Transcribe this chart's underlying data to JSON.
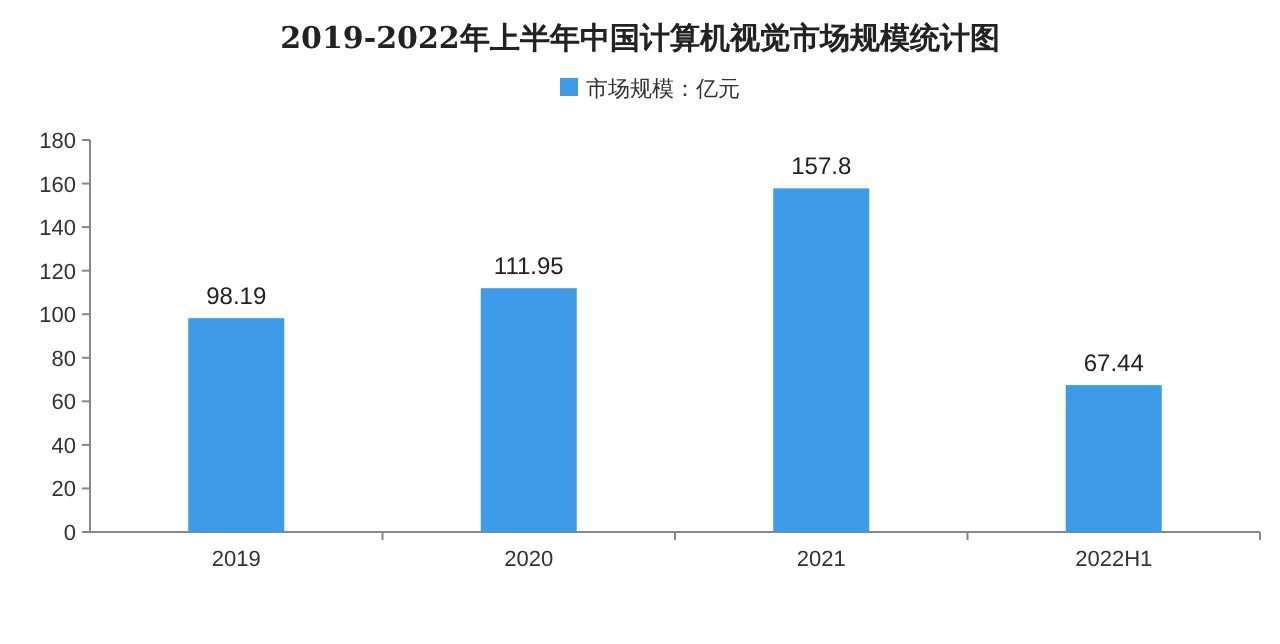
{
  "chart_data": {
    "type": "bar",
    "title": "2019-2022年上半年中国计算机视觉市场规模统计图",
    "categories": [
      "2019",
      "2020",
      "2021",
      "2022H1"
    ],
    "series": [
      {
        "name": "市场规模：亿元",
        "color": "#3d9be9",
        "values": [
          98.19,
          111.95,
          157.8,
          67.44
        ]
      }
    ],
    "ylim": [
      0,
      180
    ],
    "yticks": [
      0,
      20,
      40,
      60,
      80,
      100,
      120,
      140,
      160,
      180
    ],
    "data_labels": true,
    "legend": "top",
    "grid": false
  }
}
